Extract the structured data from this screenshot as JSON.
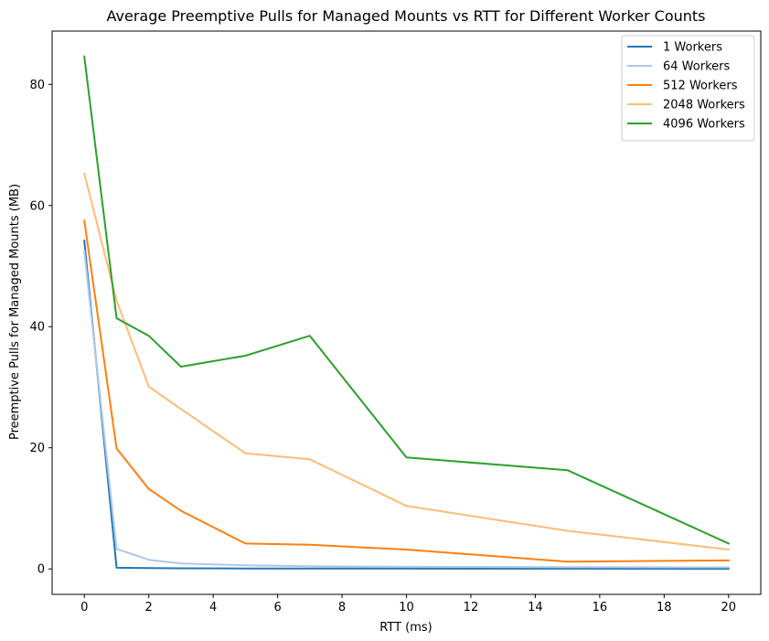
{
  "chart_data": {
    "type": "line",
    "title": "Average Preemptive Pulls for Managed Mounts vs RTT for Different Worker Counts",
    "xlabel": "RTT (ms)",
    "ylabel": "Preemptive Pulls for Managed Mounts (MB)",
    "x": [
      0,
      1,
      2,
      3,
      5,
      7,
      10,
      15,
      20
    ],
    "xlim": [
      -1,
      21
    ],
    "ylim": [
      -4.2,
      88.8
    ],
    "xticks": [
      0,
      2,
      4,
      6,
      8,
      10,
      12,
      14,
      16,
      18,
      20
    ],
    "yticks": [
      0,
      20,
      40,
      60,
      80
    ],
    "grid": false,
    "legend_position": "top-right",
    "series": [
      {
        "name": "1 Workers",
        "color": "#1f77b4",
        "values": [
          54.2,
          0.2,
          0.15,
          0.1,
          0.08,
          0.06,
          0.05,
          0.04,
          0.03
        ]
      },
      {
        "name": "64 Workers",
        "color": "#aec7e8",
        "values": [
          52.5,
          3.3,
          1.5,
          0.9,
          0.6,
          0.45,
          0.35,
          0.3,
          0.25
        ]
      },
      {
        "name": "512 Workers",
        "color": "#ff7f0e",
        "values": [
          57.5,
          19.9,
          13.2,
          9.6,
          4.2,
          4.0,
          3.2,
          1.2,
          1.4
        ]
      },
      {
        "name": "2048 Workers",
        "color": "#ffbb78",
        "values": [
          65.3,
          44.3,
          30.1,
          26.4,
          19.1,
          18.1,
          10.4,
          6.3,
          3.2
        ]
      },
      {
        "name": "4096 Workers",
        "color": "#2ca02c",
        "values": [
          84.6,
          41.4,
          38.5,
          33.4,
          35.2,
          38.5,
          18.4,
          16.3,
          4.2
        ]
      }
    ]
  }
}
